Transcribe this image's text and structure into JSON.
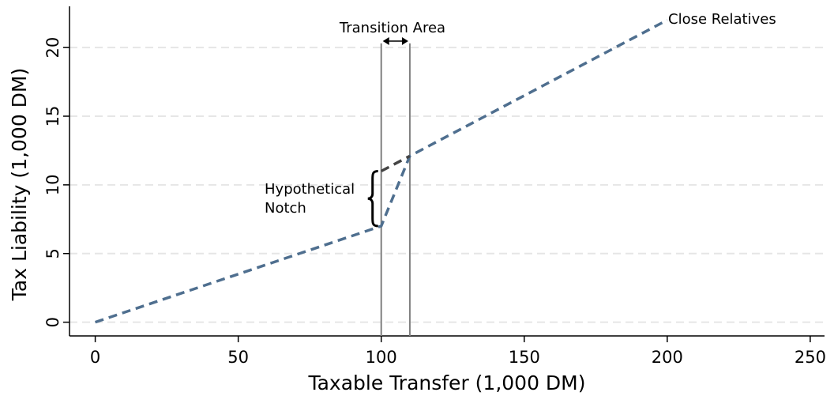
{
  "chart_data": {
    "type": "line",
    "xlabel": "Taxable Transfer (1,000 DM)",
    "ylabel": "Tax Liability (1,000 DM)",
    "xlim": [
      -9,
      255
    ],
    "ylim": [
      -1,
      23
    ],
    "xticks": [
      0,
      50,
      100,
      150,
      200,
      250
    ],
    "yticks": [
      0,
      5,
      10,
      15,
      20
    ],
    "grid": "horizontal dashed",
    "series": [
      {
        "name": "Close Relatives",
        "color": "#4f6f8f",
        "style": "dashed",
        "x": [
          0,
          100,
          110,
          200
        ],
        "y": [
          0,
          7,
          12.1,
          22
        ]
      },
      {
        "color": "#444444",
        "style": "dashed",
        "x": [
          100,
          110
        ],
        "y": [
          11,
          12.1
        ]
      }
    ],
    "vlines": [
      100,
      110
    ],
    "vline_color": "#808080",
    "annotations": {
      "transition_area": "Transition Area",
      "notch_line1": "Hypothetical",
      "notch_line2": "Notch",
      "series_label": "Close Relatives"
    }
  }
}
